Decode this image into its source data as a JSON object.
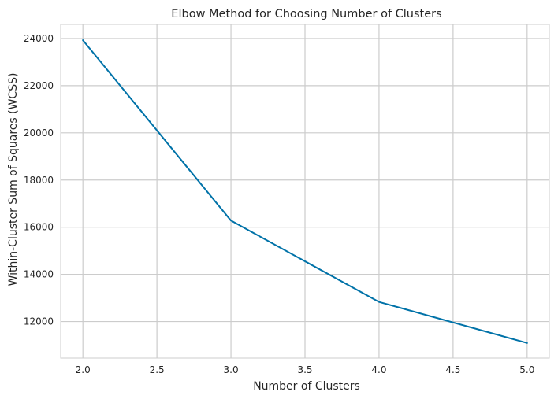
{
  "chart_data": {
    "type": "line",
    "title": "Elbow Method for Choosing Number of Clusters",
    "xlabel": "Number of Clusters",
    "ylabel": "Within-Cluster Sum of Squares (WCSS)",
    "x": [
      2,
      3,
      4,
      5
    ],
    "series": [
      {
        "values": [
          23930,
          16280,
          12830,
          11090
        ]
      }
    ],
    "xlim": [
      1.85,
      5.15
    ],
    "ylim": [
      10450,
      24600
    ],
    "xticks": [
      2.0,
      2.5,
      3.0,
      3.5,
      4.0,
      4.5,
      5.0
    ],
    "xtick_labels": [
      "2.0",
      "2.5",
      "3.0",
      "3.5",
      "4.0",
      "4.5",
      "5.0"
    ],
    "yticks": [
      12000,
      14000,
      16000,
      18000,
      20000,
      22000,
      24000
    ],
    "ytick_labels": [
      "12000",
      "14000",
      "16000",
      "18000",
      "20000",
      "22000",
      "24000"
    ],
    "grid": true,
    "line_color": "#0072a8",
    "grid_color": "#cccccc",
    "frame_color": "#cccccc"
  }
}
